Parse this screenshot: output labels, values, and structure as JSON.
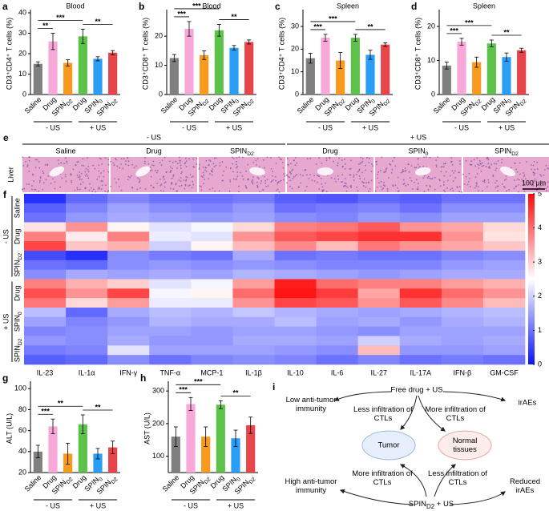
{
  "chart_data": [
    {
      "type": "bar",
      "panel": "a",
      "title": "Blood",
      "ylabel": "CD3⁺CD4⁺ T cells (%)",
      "categories": [
        "Saline",
        "Drug",
        "SPIND2",
        "Drug",
        "SPIN0",
        "SPIND2"
      ],
      "groups": [
        "- US",
        "+ US"
      ],
      "values": [
        15,
        26,
        15.5,
        28.5,
        17.5,
        20.5
      ],
      "errors": [
        1,
        4,
        1.5,
        3.5,
        1,
        1
      ],
      "colors": [
        "#7f7f7f",
        "#f7a8d8",
        "#f79a1e",
        "#5cc24a",
        "#2a9df4",
        "#e8454a"
      ],
      "ylim": [
        0,
        40
      ],
      "yticks": [
        0,
        10,
        20,
        30,
        40
      ],
      "significance": [
        "**",
        "***",
        "**"
      ]
    },
    {
      "type": "bar",
      "panel": "b",
      "title": "Blood",
      "ylabel": "CD3⁺CD8⁺ T cells (%)",
      "categories": [
        "Saline",
        "Drug",
        "SPIND2",
        "Drug",
        "SPIN0",
        "SPIND2"
      ],
      "groups": [
        "- US",
        "+ US"
      ],
      "values": [
        12.5,
        22.5,
        13.5,
        22,
        16,
        18
      ],
      "errors": [
        1.2,
        2.5,
        1.5,
        2,
        0.8,
        0.7
      ],
      "colors": [
        "#7f7f7f",
        "#f7a8d8",
        "#f79a1e",
        "#5cc24a",
        "#2a9df4",
        "#e8454a"
      ],
      "ylim": [
        0,
        28
      ],
      "yticks": [
        0,
        10,
        20
      ],
      "significance": [
        "***",
        "***",
        "**"
      ]
    },
    {
      "type": "bar",
      "panel": "c",
      "title": "Spleen",
      "ylabel": "CD3⁺CD4⁺ T cells (%)",
      "categories": [
        "Saline",
        "Drug",
        "SPIND2",
        "Drug",
        "SPIN0",
        "SPIND2"
      ],
      "groups": [
        "- US",
        "+ US"
      ],
      "values": [
        16,
        25,
        15,
        25,
        17.5,
        22
      ],
      "errors": [
        2.2,
        1.5,
        3.5,
        1.5,
        2,
        0.8
      ],
      "colors": [
        "#7f7f7f",
        "#f7a8d8",
        "#f79a1e",
        "#5cc24a",
        "#2a9df4",
        "#e8454a"
      ],
      "ylim": [
        0,
        36
      ],
      "yticks": [
        0,
        10,
        20,
        30
      ],
      "significance": [
        "***",
        "***",
        "**"
      ]
    },
    {
      "type": "bar",
      "panel": "d",
      "title": "Spleen",
      "ylabel": "CD3⁺CD8⁺ T cells (%)",
      "categories": [
        "Saline",
        "Drug",
        "SPIND2",
        "Drug",
        "SPIN0",
        "SPIND2"
      ],
      "groups": [
        "- US",
        "+ US"
      ],
      "values": [
        8.5,
        15.5,
        9.5,
        15,
        11,
        13
      ],
      "errors": [
        1,
        1,
        1.5,
        1,
        1.2,
        0.6
      ],
      "colors": [
        "#7f7f7f",
        "#f7a8d8",
        "#f79a1e",
        "#5cc24a",
        "#2a9df4",
        "#e8454a"
      ],
      "ylim": [
        0,
        24
      ],
      "yticks": [
        0,
        10,
        20
      ],
      "significance": [
        "***",
        "***",
        "**"
      ]
    },
    {
      "type": "heatmap",
      "panel": "f",
      "columns": [
        "IL-23",
        "IL-1α",
        "IFN-γ",
        "TNF-α",
        "MCP-1",
        "IL-1β",
        "IL-10",
        "IL-6",
        "IL-27",
        "IL-17A",
        "IFN-β",
        "GM-CSF"
      ],
      "groups": [
        "- US",
        "+ US"
      ],
      "row_groups": [
        {
          "name": "Saline",
          "values": [
            [
              0.3,
              0.9,
              1.2,
              1.0,
              1.0,
              1.1,
              0.8,
              0.7,
              0.9,
              0.8,
              1.0,
              1.0
            ],
            [
              0.8,
              1.2,
              1.5,
              1.3,
              1.2,
              1.4,
              1.0,
              1.1,
              1.2,
              1.0,
              1.3,
              1.3
            ],
            [
              1.0,
              1.4,
              1.6,
              1.5,
              1.4,
              1.5,
              1.3,
              1.2,
              1.4,
              1.3,
              1.5,
              1.5
            ]
          ]
        },
        {
          "name": "Drug",
          "values": [
            [
              2.8,
              3.6,
              2.6,
              2.2,
              2.4,
              2.9,
              3.8,
              3.9,
              4.2,
              3.6,
              3.4,
              2.9
            ],
            [
              3.8,
              2.7,
              3.8,
              2.3,
              2.2,
              3.6,
              4.2,
              4.4,
              4.6,
              4.6,
              3.6,
              2.8
            ],
            [
              4.4,
              3.1,
              3.3,
              2.0,
              2.6,
              3.2,
              3.7,
              3.2,
              3.9,
              3.6,
              3.4,
              3.1
            ]
          ]
        },
        {
          "name": "SPIND2",
          "values": [
            [
              0.6,
              0.3,
              1.3,
              1.1,
              1.0,
              1.6,
              1.0,
              1.1,
              1.0,
              1.0,
              1.2,
              1.3
            ],
            [
              1.0,
              0.9,
              1.3,
              1.4,
              1.3,
              1.4,
              1.3,
              1.2,
              1.2,
              1.2,
              1.4,
              1.5
            ],
            [
              1.3,
              1.6,
              1.5,
              1.6,
              1.5,
              1.7,
              1.6,
              1.5,
              1.4,
              1.5,
              1.6,
              1.6
            ]
          ]
        },
        {
          "name": "Drug",
          "values": [
            [
              3.8,
              3.3,
              3.0,
              2.2,
              2.4,
              3.5,
              4.8,
              4.0,
              3.8,
              3.8,
              3.5,
              3.3
            ],
            [
              4.3,
              3.6,
              4.4,
              2.4,
              2.6,
              4.0,
              4.9,
              4.5,
              3.4,
              4.6,
              4.0,
              3.6
            ],
            [
              3.9,
              2.9,
              3.5,
              2.3,
              2.3,
              3.6,
              4.4,
              4.2,
              3.6,
              4.2,
              3.7,
              3.2
            ]
          ]
        },
        {
          "name": "SPIN0",
          "values": [
            [
              1.8,
              0.9,
              1.6,
              1.8,
              1.7,
              1.9,
              1.7,
              1.6,
              1.5,
              1.6,
              1.7,
              1.8
            ],
            [
              1.5,
              1.2,
              1.4,
              1.7,
              1.6,
              1.6,
              1.8,
              1.5,
              1.6,
              1.4,
              1.6,
              1.7
            ],
            [
              1.2,
              1.3,
              1.5,
              1.5,
              1.4,
              1.5,
              1.5,
              1.4,
              1.3,
              1.5,
              1.5,
              1.5
            ]
          ]
        },
        {
          "name": "SPIND2",
          "values": [
            [
              1.4,
              1.3,
              1.6,
              1.4,
              1.4,
              1.6,
              1.6,
              1.5,
              2.0,
              1.6,
              1.5,
              1.6
            ],
            [
              1.1,
              1.2,
              2.2,
              1.5,
              1.5,
              1.5,
              1.4,
              1.3,
              3.2,
              1.4,
              1.4,
              1.5
            ],
            [
              0.8,
              0.9,
              1.3,
              1.0,
              1.2,
              1.3,
              1.2,
              1.0,
              1.2,
              1.0,
              1.1,
              1.0
            ]
          ]
        }
      ],
      "zlim": [
        0,
        5
      ],
      "zticks": [
        0,
        1,
        2,
        3,
        4,
        5
      ],
      "colormap": [
        "#0a14ff",
        "#ffffff",
        "#ff0a0a"
      ]
    },
    {
      "type": "bar",
      "panel": "g",
      "ylabel": "ALT (U/L)",
      "categories": [
        "Saline",
        "Drug",
        "SPIND2",
        "Drug",
        "SPIN0",
        "SPIND2"
      ],
      "groups": [
        "- US",
        "+ US"
      ],
      "values": [
        40,
        64,
        38,
        66,
        38,
        44
      ],
      "errors": [
        6,
        7,
        10,
        9,
        5,
        6
      ],
      "colors": [
        "#7f7f7f",
        "#f7a8d8",
        "#f79a1e",
        "#5cc24a",
        "#2a9df4",
        "#e8454a"
      ],
      "ylim": [
        20,
        104
      ],
      "yticks": [
        20,
        40,
        60,
        80,
        100
      ],
      "significance": [
        "***",
        "**",
        "**"
      ]
    },
    {
      "type": "bar",
      "panel": "h",
      "ylabel": "AST (U/L)",
      "categories": [
        "Saline",
        "Drug",
        "SPIND2",
        "Drug",
        "SPIN0",
        "SPIND2"
      ],
      "groups": [
        "- US",
        "+ US"
      ],
      "values": [
        160,
        260,
        160,
        258,
        155,
        195
      ],
      "errors": [
        30,
        20,
        30,
        12,
        25,
        25
      ],
      "colors": [
        "#7f7f7f",
        "#f7a8d8",
        "#f79a1e",
        "#5cc24a",
        "#2a9df4",
        "#e8454a"
      ],
      "ylim": [
        50,
        320
      ],
      "yticks": [
        100,
        200,
        300
      ],
      "significance": [
        "***",
        "***",
        "**"
      ]
    }
  ],
  "images": {
    "panel": "e",
    "groups": [
      "- US",
      "+ US"
    ],
    "row_label": "Liver",
    "labels": [
      "Saline",
      "Drug",
      "SPIND2",
      "Drug",
      "SPIN0",
      "SPIND2"
    ],
    "scale_bar": "100 μm"
  },
  "diagram": {
    "panel": "i",
    "nodes": [
      "Free drug + US",
      "Low anti-tumor immunity",
      "Less infiltration of CTLs",
      "More infiltration of CTLs",
      "irAEs",
      "Tumor",
      "Normal tissues",
      "More infiltration of CTLs",
      "Less infiltration of CTLs",
      "High anti-tumor immunity",
      "Reduced irAEs",
      "SPIND2 + US"
    ]
  }
}
